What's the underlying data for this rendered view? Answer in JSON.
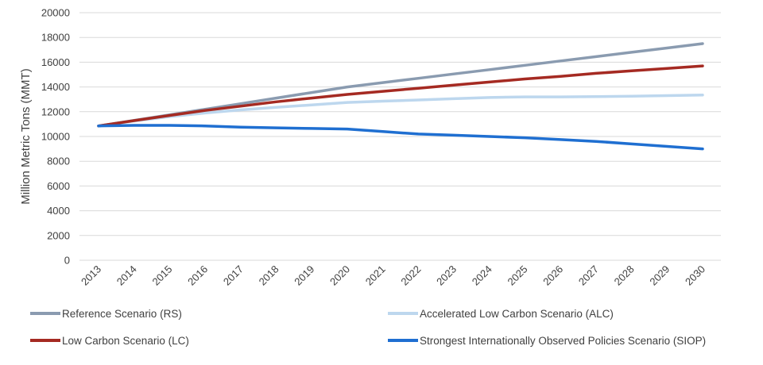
{
  "chart_data": {
    "type": "line",
    "title": "",
    "xlabel": "",
    "ylabel": "Million Metric Tons (MMT)",
    "ylim": [
      0,
      20000
    ],
    "y_ticks": [
      0,
      2000,
      4000,
      6000,
      8000,
      10000,
      12000,
      14000,
      16000,
      18000,
      20000
    ],
    "categories": [
      "2013",
      "2014",
      "2015",
      "2016",
      "2017",
      "2018",
      "2019",
      "2020",
      "2021",
      "2022",
      "2023",
      "2024",
      "2025",
      "2026",
      "2027",
      "2028",
      "2029",
      "2030"
    ],
    "grid": true,
    "legend_position": "bottom",
    "series": [
      {
        "name": "Reference Scenario (RS)",
        "color": "#8a9bb0",
        "values": [
          10850,
          11300,
          11750,
          12200,
          12650,
          13100,
          13550,
          14000,
          14350,
          14700,
          15050,
          15400,
          15750,
          16100,
          16450,
          16800,
          17150,
          17500
        ]
      },
      {
        "name": "Accelerated Low Carbon Scenario (ALC)",
        "color": "#bdd7ee",
        "values": [
          10850,
          11250,
          11600,
          11900,
          12150,
          12350,
          12550,
          12750,
          12850,
          12950,
          13050,
          13150,
          13200,
          13200,
          13220,
          13250,
          13300,
          13350
        ]
      },
      {
        "name": "Low Carbon Scenario (LC)",
        "color": "#a52a22",
        "values": [
          10850,
          11280,
          11700,
          12100,
          12450,
          12800,
          13100,
          13400,
          13650,
          13900,
          14150,
          14400,
          14650,
          14850,
          15100,
          15300,
          15500,
          15700
        ]
      },
      {
        "name": "Strongest Internationally Observed Policies Scenario (SIOP)",
        "color": "#1f6fd1",
        "values": [
          10850,
          10900,
          10900,
          10850,
          10750,
          10700,
          10650,
          10600,
          10400,
          10200,
          10100,
          10000,
          9900,
          9750,
          9600,
          9400,
          9200,
          9000
        ]
      }
    ]
  }
}
